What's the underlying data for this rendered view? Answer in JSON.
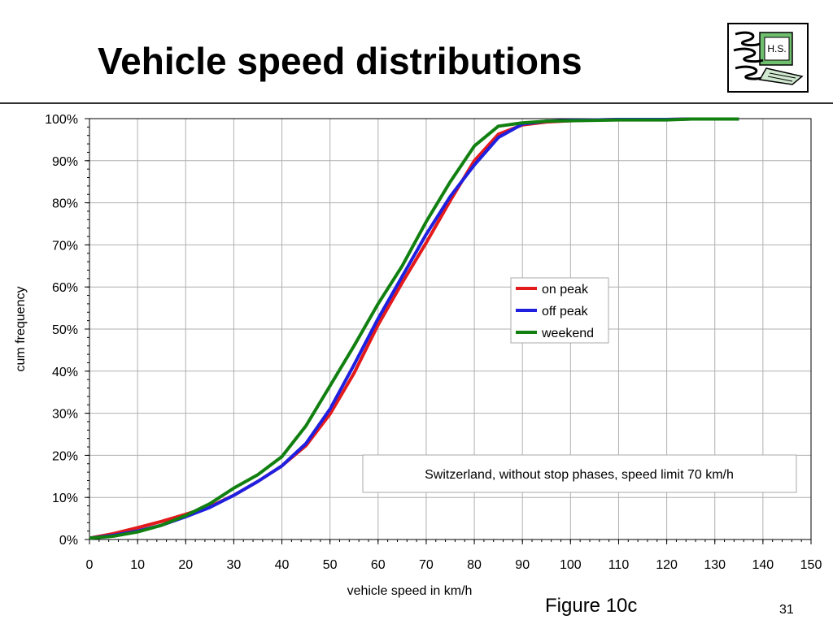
{
  "slide": {
    "title": "Vehicle speed distributions",
    "logo_text": "H.S.",
    "figure_caption": "Figure 10c",
    "page_number": "31"
  },
  "chart_data": {
    "type": "line",
    "xlabel": "vehicle speed in km/h",
    "ylabel": "cum frequency",
    "xlim": [
      0,
      150
    ],
    "ylim": [
      0,
      100
    ],
    "x_ticks": [
      "0",
      "10",
      "20",
      "30",
      "40",
      "50",
      "60",
      "70",
      "80",
      "90",
      "100",
      "110",
      "120",
      "130",
      "140",
      "150"
    ],
    "y_ticks": [
      "0%",
      "10%",
      "20%",
      "30%",
      "40%",
      "50%",
      "60%",
      "70%",
      "80%",
      "90%",
      "100%"
    ],
    "grid": true,
    "legend_position": "right-middle",
    "annotation": "Switzerland, without stop phases, speed limit 70 km/h",
    "x": [
      0,
      5,
      10,
      15,
      20,
      25,
      30,
      35,
      40,
      45,
      50,
      55,
      60,
      65,
      70,
      75,
      80,
      85,
      90,
      95,
      100,
      105,
      110,
      115,
      120,
      125,
      130,
      135
    ],
    "series": [
      {
        "name": "on peak",
        "color": "#e31a1c",
        "values": [
          0.3,
          1.4,
          2.8,
          4.3,
          6.0,
          7.8,
          10.5,
          13.8,
          17.5,
          22.3,
          29.8,
          39.5,
          51.0,
          61.0,
          70.5,
          80.5,
          90.0,
          96.3,
          98.5,
          99.2,
          99.5,
          99.7,
          99.8,
          99.8,
          99.8,
          99.9,
          99.9,
          99.9
        ]
      },
      {
        "name": "off peak",
        "color": "#1f1fe0",
        "values": [
          0.3,
          1.0,
          2.0,
          3.4,
          5.4,
          7.6,
          10.5,
          13.8,
          17.5,
          22.8,
          31.0,
          41.5,
          52.5,
          62.5,
          72.5,
          81.5,
          89.0,
          95.5,
          98.7,
          99.4,
          99.6,
          99.7,
          99.8,
          99.8,
          99.8,
          99.9,
          99.9,
          99.9
        ]
      },
      {
        "name": "weekend",
        "color": "#118011",
        "values": [
          0.3,
          0.8,
          1.8,
          3.4,
          5.7,
          8.5,
          12.2,
          15.4,
          19.7,
          27.0,
          36.5,
          46.0,
          56.0,
          65.0,
          75.5,
          85.0,
          93.5,
          98.2,
          99.0,
          99.4,
          99.5,
          99.6,
          99.7,
          99.7,
          99.7,
          99.9,
          99.9,
          99.9
        ]
      }
    ]
  }
}
